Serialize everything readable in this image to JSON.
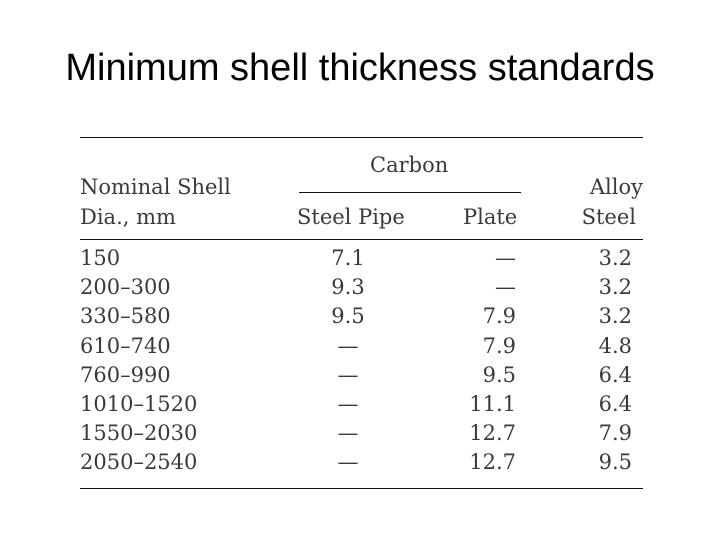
{
  "title": "Minimum shell thickness standards",
  "table": {
    "headers": {
      "nominal_line1": "Nominal Shell",
      "nominal_line2": "Dia., mm",
      "carbon": "Carbon",
      "steel_pipe": "Steel Pipe",
      "plate": "Plate",
      "alloy_line1": "Alloy",
      "alloy_line2": "Steel"
    },
    "rows": [
      {
        "dia": "150",
        "steel_pipe": "7.1",
        "plate": "—",
        "alloy": "3.2"
      },
      {
        "dia": "200–300",
        "steel_pipe": "9.3",
        "plate": "—",
        "alloy": "3.2"
      },
      {
        "dia": "330–580",
        "steel_pipe": "9.5",
        "plate": "7.9",
        "alloy": "3.2"
      },
      {
        "dia": "610–740",
        "steel_pipe": "—",
        "plate": "7.9",
        "alloy": "4.8"
      },
      {
        "dia": "760–990",
        "steel_pipe": "—",
        "plate": "9.5",
        "alloy": "6.4"
      },
      {
        "dia": "1010–1520",
        "steel_pipe": "—",
        "plate": "11.1",
        "alloy": "6.4"
      },
      {
        "dia": "1550–2030",
        "steel_pipe": "—",
        "plate": "12.7",
        "alloy": "7.9"
      },
      {
        "dia": "2050–2540",
        "steel_pipe": "—",
        "plate": "12.7",
        "alloy": "9.5"
      }
    ]
  }
}
